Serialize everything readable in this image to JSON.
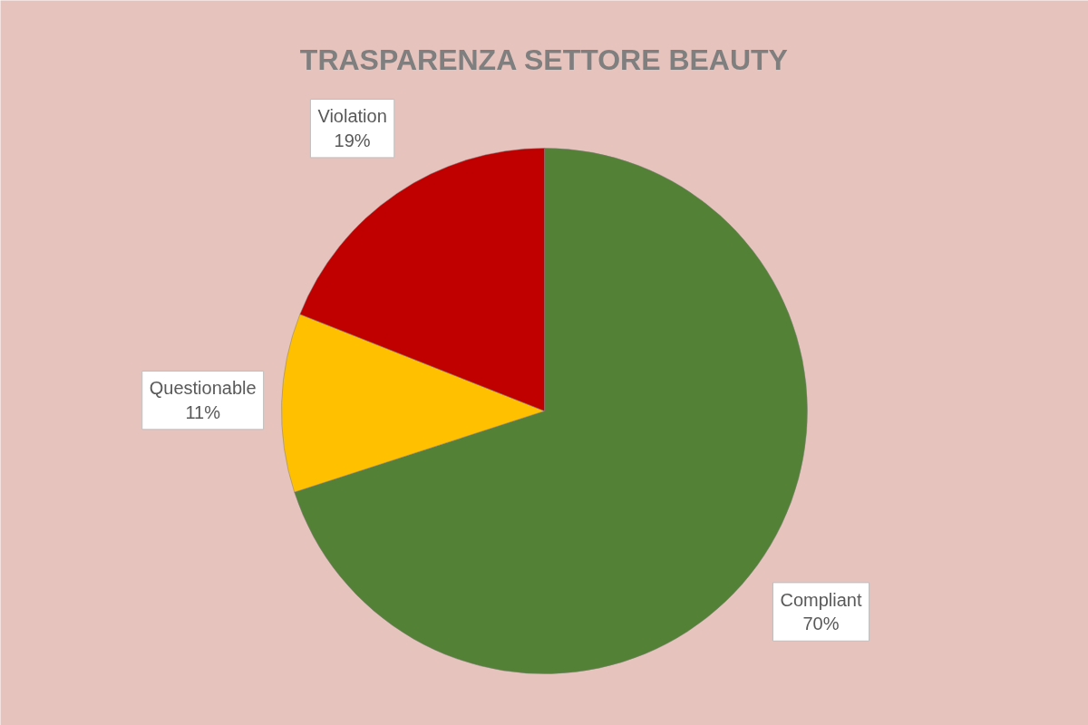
{
  "chart_data": {
    "type": "pie",
    "title": "TRASPARENZA SETTORE BEAUTY",
    "categories": [
      "Compliant",
      "Questionable",
      "Violation"
    ],
    "values": [
      70,
      11,
      19
    ],
    "colors": [
      "#538135",
      "#ffc000",
      "#c00000"
    ],
    "value_labels": [
      "70%",
      "11%",
      "19%"
    ]
  }
}
